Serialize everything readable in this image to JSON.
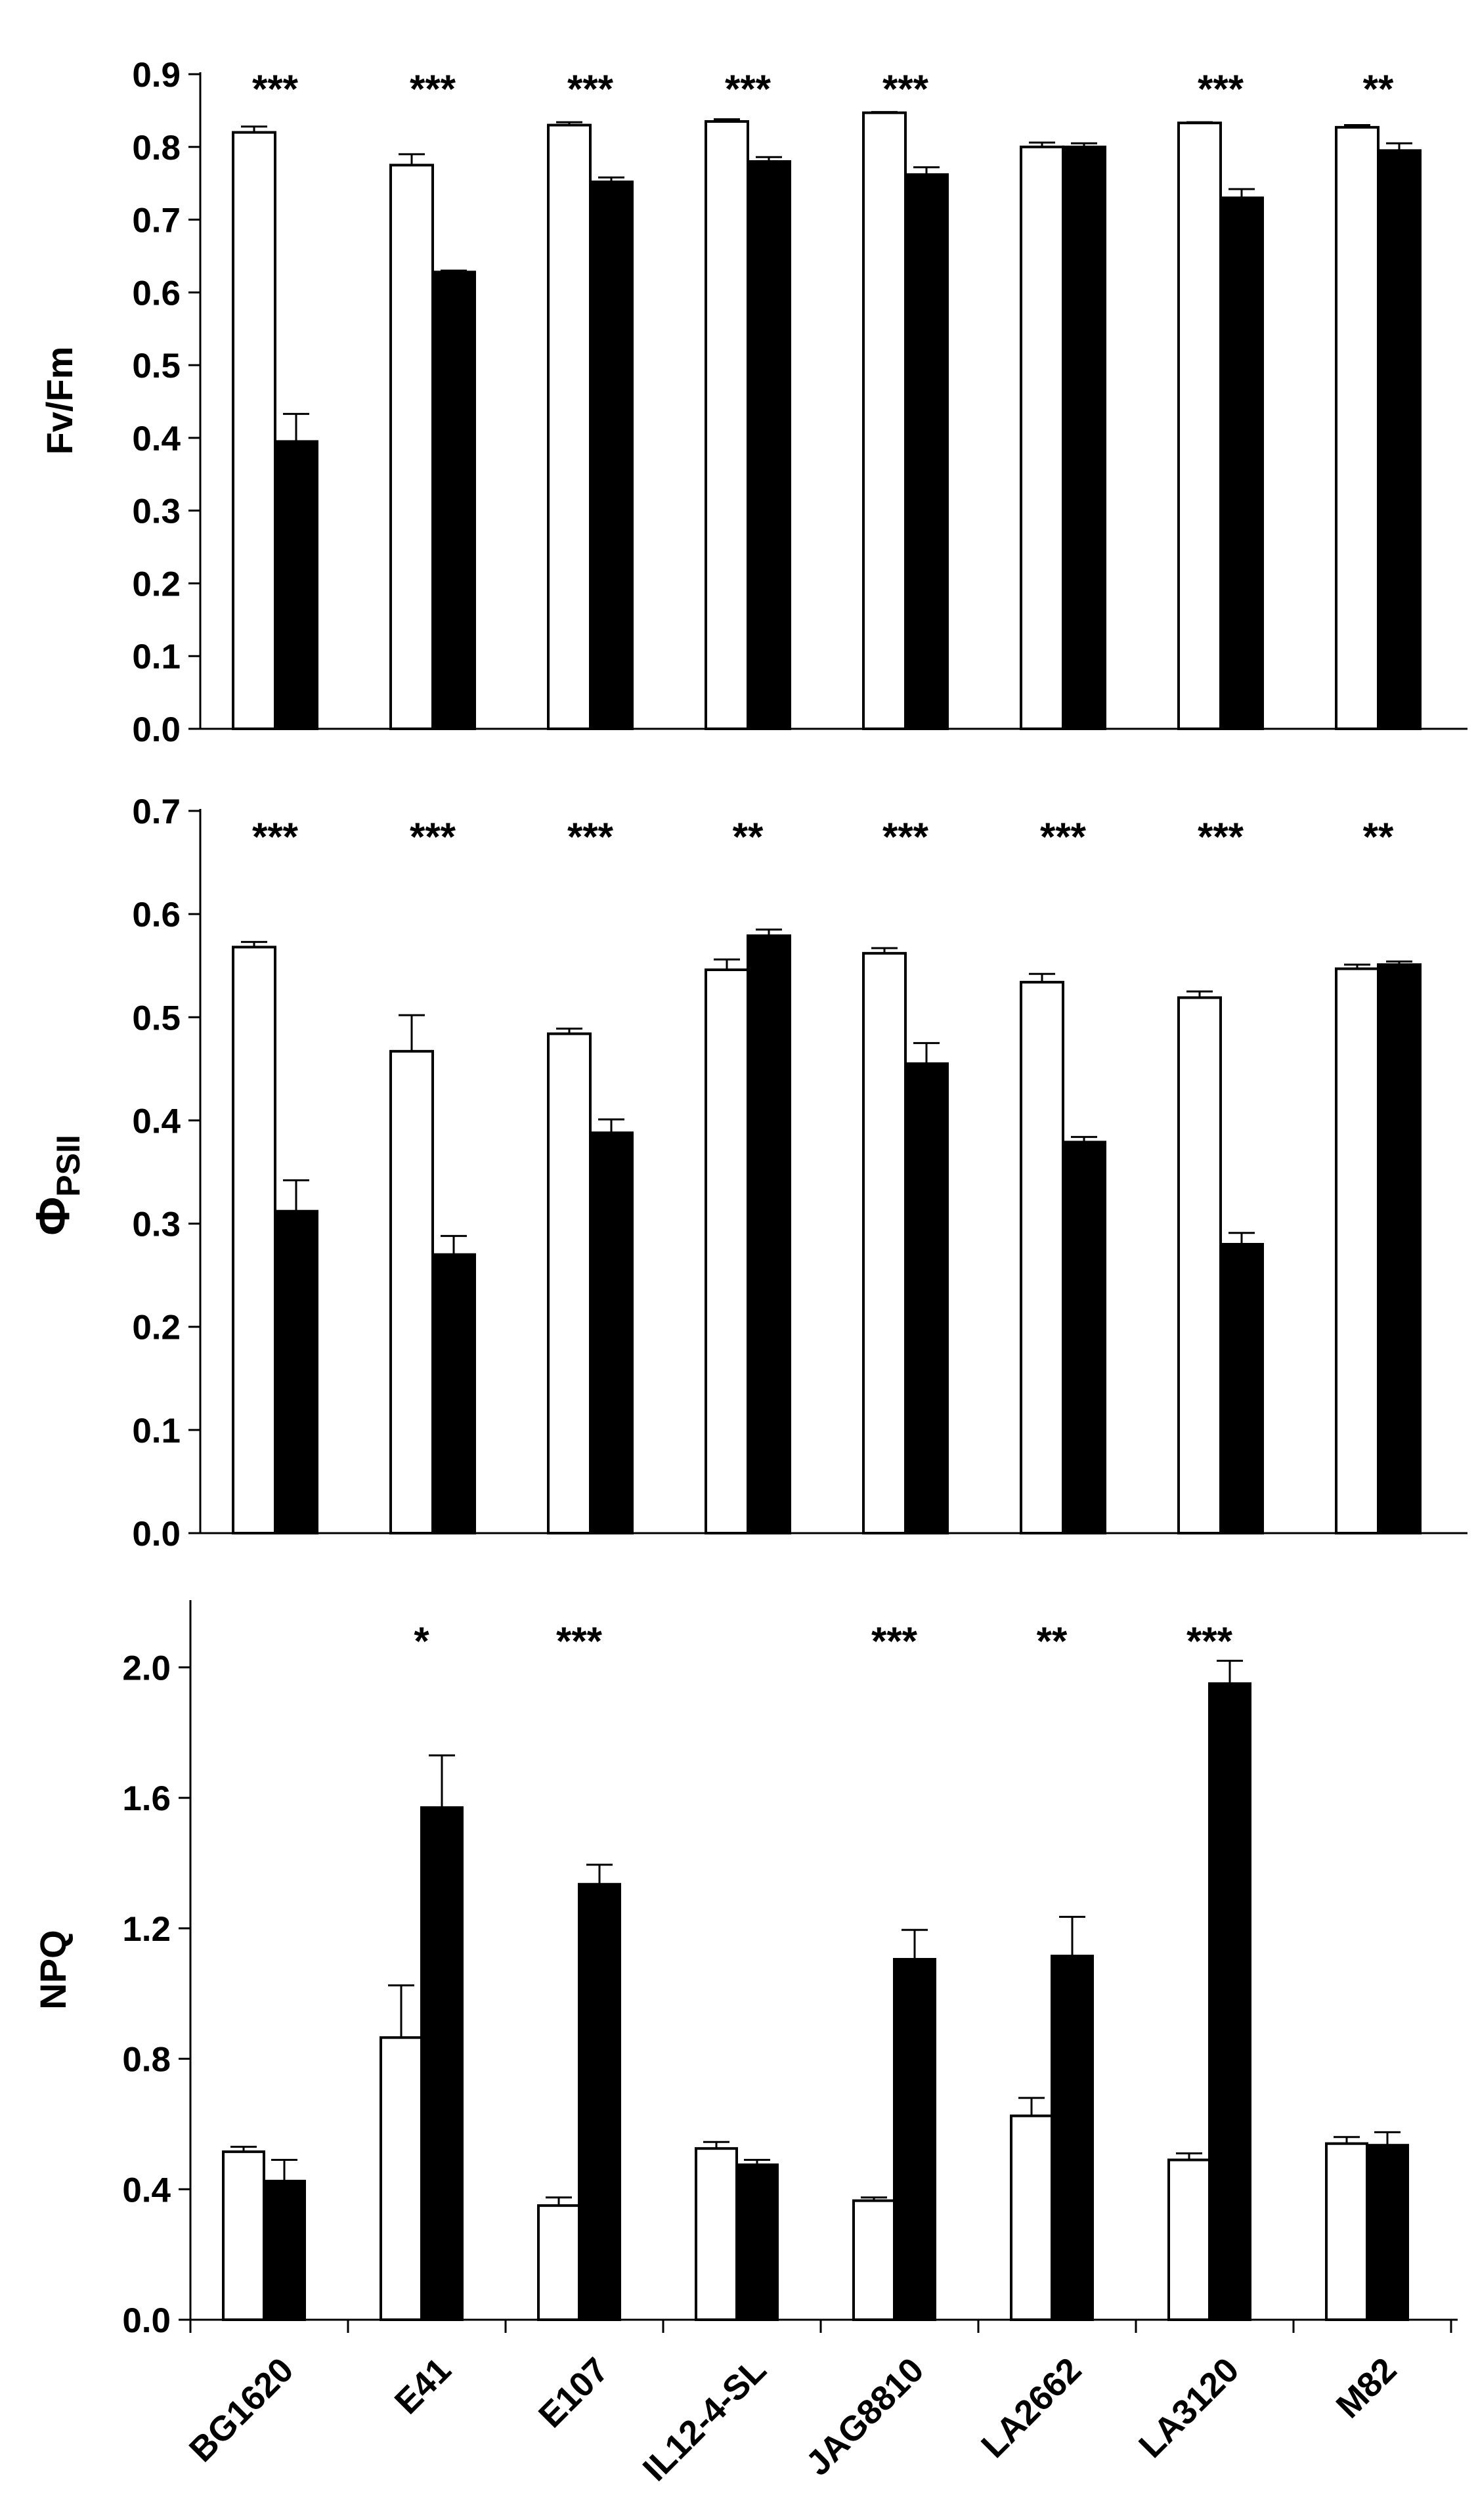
{
  "chart_data": [
    {
      "type": "bar",
      "ylabel": "Fv/Fm",
      "ylim": [
        0,
        0.9
      ],
      "yticks": [
        "0.0",
        "0.1",
        "0.2",
        "0.3",
        "0.4",
        "0.5",
        "0.6",
        "0.7",
        "0.8",
        "0.9"
      ],
      "categories": [
        "BG1620",
        "E41",
        "E107",
        "IL12-4-SL",
        "JAG8810",
        "LA2662",
        "LA3120",
        "M82"
      ],
      "series": [
        {
          "fill": "#ffffff",
          "values": [
            0.82,
            0.775,
            0.83,
            0.835,
            0.847,
            0.8,
            0.833,
            0.827
          ],
          "errors": [
            0.008,
            0.015,
            0.004,
            0.003,
            0.001,
            0.006,
            0.001,
            0.003
          ]
        },
        {
          "fill": "#000000",
          "values": [
            0.395,
            0.628,
            0.752,
            0.78,
            0.762,
            0.8,
            0.73,
            0.795
          ],
          "errors": [
            0.038,
            0.002,
            0.006,
            0.006,
            0.01,
            0.005,
            0.012,
            0.01
          ]
        }
      ],
      "significance": [
        "***",
        "***",
        "***",
        "***",
        "***",
        "",
        "***",
        "**"
      ],
      "grid": false,
      "legend": "none"
    },
    {
      "type": "bar",
      "ylabel": "ΦPSII",
      "ylabel_main": "Φ",
      "ylabel_sub": "PSII",
      "ylim": [
        0,
        0.7
      ],
      "yticks": [
        "0.0",
        "0.1",
        "0.2",
        "0.3",
        "0.4",
        "0.5",
        "0.6",
        "0.7"
      ],
      "categories": [
        "BG1620",
        "E41",
        "E107",
        "IL12-4-SL",
        "JAG8810",
        "LA2662",
        "LA3120",
        "M82"
      ],
      "series": [
        {
          "fill": "#ffffff",
          "values": [
            0.568,
            0.467,
            0.484,
            0.546,
            0.562,
            0.534,
            0.519,
            0.547
          ],
          "errors": [
            0.005,
            0.035,
            0.005,
            0.01,
            0.005,
            0.008,
            0.006,
            0.004
          ]
        },
        {
          "fill": "#000000",
          "values": [
            0.312,
            0.27,
            0.388,
            0.579,
            0.455,
            0.379,
            0.28,
            0.551
          ],
          "errors": [
            0.03,
            0.018,
            0.013,
            0.006,
            0.02,
            0.005,
            0.011,
            0.003
          ]
        }
      ],
      "significance": [
        "***",
        "***",
        "***",
        "**",
        "***",
        "***",
        "***",
        "**"
      ],
      "grid": false,
      "legend": "none"
    },
    {
      "type": "bar",
      "ylabel": "NPQ",
      "ylim": [
        0,
        2.2
      ],
      "yticks": [
        "0.0",
        "0.4",
        "0.8",
        "1.2",
        "1.6",
        "2.0"
      ],
      "categories": [
        "BG1620",
        "E41",
        "E107",
        "IL12-4-SL",
        "JAG8810",
        "LA2662",
        "LA3120",
        "M82"
      ],
      "series": [
        {
          "fill": "#ffffff",
          "values": [
            0.515,
            0.865,
            0.35,
            0.525,
            0.365,
            0.625,
            0.49,
            0.54
          ],
          "errors": [
            0.015,
            0.16,
            0.025,
            0.02,
            0.01,
            0.055,
            0.02,
            0.02
          ]
        },
        {
          "fill": "#000000",
          "values": [
            0.425,
            1.57,
            1.335,
            0.475,
            1.105,
            1.115,
            1.95,
            0.535
          ],
          "errors": [
            0.065,
            0.16,
            0.06,
            0.015,
            0.09,
            0.12,
            0.07,
            0.04
          ]
        }
      ],
      "significance": [
        "",
        "*",
        "***",
        "",
        "***",
        "**",
        "***",
        ""
      ],
      "grid": false,
      "legend": "none"
    }
  ]
}
